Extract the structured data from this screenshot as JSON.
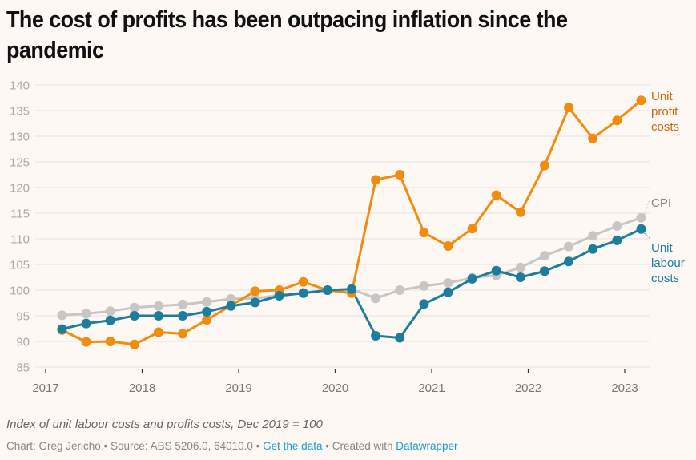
{
  "header": {
    "title": "The cost of profits has been outpacing inflation since the pandemic"
  },
  "notes": "Index of unit labour costs and profits costs, Dec 2019 = 100",
  "footer": {
    "chart_by": "Chart: Greg Jericho",
    "sep1": " • ",
    "source": "Source: ABS 5206.0, 64010.0",
    "sep2": " • ",
    "get_data": "Get the data",
    "sep3": " • ",
    "created_with": "Created with ",
    "datawrapper": "Datawrapper"
  },
  "colors": {
    "profit": "#f28c0f",
    "profit_label": "#c96a10",
    "cpi": "#c8c6c4",
    "cpi_label": "#8a8886",
    "labour": "#1c7d9d",
    "labour_label": "#1c7d9d",
    "link": "#1d9bd1"
  },
  "chart_data": {
    "type": "line",
    "title": "The cost of profits has been outpacing inflation since the pandemic",
    "xlabel": "",
    "ylabel": "",
    "xlim": [
      2017,
      2023.3
    ],
    "ylim": [
      85,
      140
    ],
    "yticks": [
      85,
      90,
      95,
      100,
      105,
      110,
      115,
      120,
      125,
      130,
      135,
      140
    ],
    "xticks": [
      2017,
      2018,
      2019,
      2020,
      2021,
      2022,
      2023
    ],
    "grid": true,
    "legend": "direct labels at right end of lines",
    "x": [
      "Mar 2017",
      "Jun 2017",
      "Sep 2017",
      "Dec 2017",
      "Mar 2018",
      "Jun 2018",
      "Sep 2018",
      "Dec 2018",
      "Mar 2019",
      "Jun 2019",
      "Sep 2019",
      "Dec 2019",
      "Mar 2020",
      "Jun 2020",
      "Sep 2020",
      "Dec 2020",
      "Mar 2021",
      "Jun 2021",
      "Sep 2021",
      "Dec 2021",
      "Mar 2022",
      "Jun 2022",
      "Sep 2022",
      "Dec 2022",
      "Mar 2023"
    ],
    "x_decimal": [
      2017.17,
      2017.42,
      2017.67,
      2017.92,
      2018.17,
      2018.42,
      2018.67,
      2018.92,
      2019.17,
      2019.42,
      2019.67,
      2019.92,
      2020.17,
      2020.42,
      2020.67,
      2020.92,
      2021.17,
      2021.42,
      2021.67,
      2021.92,
      2022.17,
      2022.42,
      2022.67,
      2022.92,
      2023.17
    ],
    "series": [
      {
        "name": "CPI",
        "label": [
          "CPI"
        ],
        "values": [
          95.1,
          95.4,
          95.9,
          96.6,
          96.9,
          97.2,
          97.7,
          98.3,
          98.4,
          99.0,
          99.5,
          100.0,
          100.2,
          98.4,
          100.0,
          100.8,
          101.4,
          102.4,
          102.9,
          104.4,
          106.7,
          108.5,
          110.6,
          112.5,
          114.1
        ]
      },
      {
        "name": "Unit labour costs",
        "label": [
          "Unit",
          "labour",
          "costs"
        ],
        "values": [
          92.4,
          93.5,
          94.1,
          95.0,
          95.0,
          95.0,
          95.8,
          96.9,
          97.6,
          98.9,
          99.4,
          100.0,
          100.2,
          91.1,
          90.7,
          97.3,
          99.6,
          102.2,
          103.8,
          102.5,
          103.7,
          105.6,
          108.0,
          109.7,
          111.9
        ]
      },
      {
        "name": "Unit profit costs",
        "label": [
          "Unit",
          "profit",
          "costs"
        ],
        "values": [
          92.2,
          89.9,
          90.0,
          89.4,
          91.8,
          91.5,
          94.2,
          97.0,
          99.8,
          100.0,
          101.6,
          100.0,
          99.4,
          121.5,
          122.5,
          111.2,
          108.6,
          112.0,
          118.5,
          115.2,
          124.3,
          135.6,
          129.6,
          133.1,
          137.0
        ]
      }
    ]
  }
}
